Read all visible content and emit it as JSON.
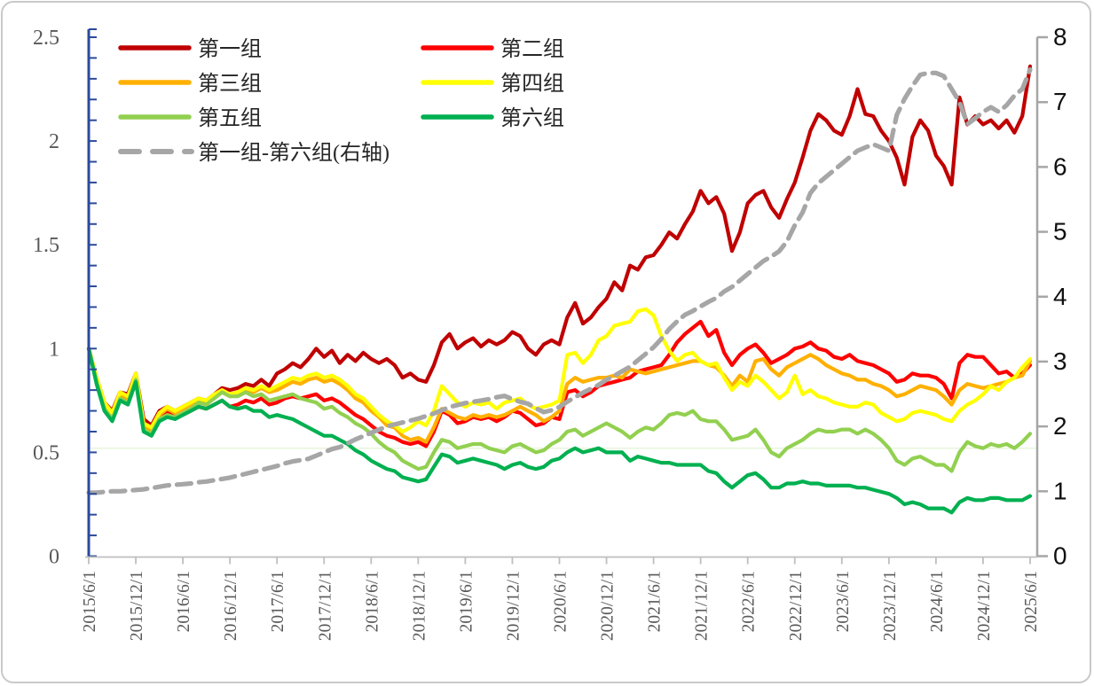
{
  "legend": {
    "items": [
      {
        "label": "第一组",
        "color": "#C00000",
        "dashed": false
      },
      {
        "label": "第二组",
        "color": "#FF0000",
        "dashed": false
      },
      {
        "label": "第三组",
        "color": "#FFB000",
        "dashed": false
      },
      {
        "label": "第四组",
        "color": "#FFFF00",
        "dashed": false
      },
      {
        "label": "第五组",
        "color": "#92D050",
        "dashed": false
      },
      {
        "label": "第六组",
        "color": "#00B050",
        "dashed": false
      },
      {
        "label": "第一组-第六组(右轴)",
        "color": "#A6A6A6",
        "dashed": true
      }
    ]
  },
  "chart_data": {
    "type": "line",
    "title": "",
    "x_frequency": "monthly",
    "x_start": "2015/6/1",
    "x_end": "2025/6/1",
    "x_tick_labels": [
      "2015/6/1",
      "2015/12/1",
      "2016/6/1",
      "2016/12/1",
      "2017/6/1",
      "2017/12/1",
      "2018/6/1",
      "2018/12/1",
      "2019/6/1",
      "2019/12/1",
      "2020/6/1",
      "2020/12/1",
      "2021/6/1",
      "2021/12/1",
      "2022/6/1",
      "2022/12/1",
      "2023/6/1",
      "2023/12/1",
      "2024/6/1",
      "2024/12/1",
      "2025/6/1"
    ],
    "left_axis": {
      "min": 0,
      "max": 2.5,
      "minor_step": 0.1,
      "tick_values": [
        0,
        0.5,
        1,
        1.5,
        2,
        2.5
      ],
      "tick_labels": [
        "0",
        "0.5",
        "1",
        "1.5",
        "2",
        "2.5"
      ],
      "line_color": "#2b4a9b",
      "label_color": "#595959"
    },
    "right_axis": {
      "min": 0,
      "max": 8,
      "tick_values": [
        0,
        1,
        2,
        3,
        4,
        5,
        6,
        7,
        8
      ],
      "tick_labels": [
        "0",
        "1",
        "2",
        "3",
        "4",
        "5",
        "6",
        "7",
        "8"
      ],
      "line_color": "#a6a6a6",
      "label_color": "#111111"
    },
    "x_axis": {
      "line_color": "#bfbfbf",
      "label_color": "#595959"
    },
    "faint_hline_left_value": 0.52,
    "grid": "off",
    "legend_position": "top-left, two columns",
    "series": [
      {
        "name": "第一组",
        "color": "#C00000",
        "axis": "left",
        "dashed": false,
        "values": [
          1.0,
          0.86,
          0.74,
          0.7,
          0.79,
          0.78,
          0.88,
          0.66,
          0.63,
          0.7,
          0.72,
          0.7,
          0.72,
          0.74,
          0.76,
          0.75,
          0.78,
          0.81,
          0.8,
          0.81,
          0.83,
          0.82,
          0.85,
          0.82,
          0.88,
          0.9,
          0.93,
          0.91,
          0.95,
          1.0,
          0.96,
          0.99,
          0.93,
          0.97,
          0.94,
          0.98,
          0.95,
          0.93,
          0.95,
          0.92,
          0.86,
          0.88,
          0.85,
          0.84,
          0.92,
          1.03,
          1.07,
          1.0,
          1.03,
          1.05,
          1.01,
          1.04,
          1.02,
          1.04,
          1.08,
          1.06,
          1.0,
          0.97,
          1.02,
          1.04,
          1.02,
          1.15,
          1.22,
          1.12,
          1.15,
          1.2,
          1.24,
          1.32,
          1.28,
          1.4,
          1.38,
          1.44,
          1.45,
          1.5,
          1.56,
          1.53,
          1.6,
          1.66,
          1.76,
          1.7,
          1.73,
          1.65,
          1.47,
          1.56,
          1.7,
          1.74,
          1.76,
          1.68,
          1.63,
          1.72,
          1.8,
          1.92,
          2.05,
          2.13,
          2.1,
          2.05,
          2.03,
          2.12,
          2.25,
          2.13,
          2.12,
          2.05,
          2.0,
          1.92,
          1.79,
          2.02,
          2.1,
          2.05,
          1.93,
          1.88,
          1.79,
          2.21,
          2.08,
          2.12,
          2.08,
          2.1,
          2.06,
          2.1,
          2.04,
          2.12,
          2.36
        ]
      },
      {
        "name": "第二组",
        "color": "#FF0000",
        "axis": "left",
        "dashed": false,
        "values": [
          1.0,
          0.85,
          0.72,
          0.67,
          0.77,
          0.75,
          0.86,
          0.62,
          0.6,
          0.67,
          0.69,
          0.67,
          0.68,
          0.7,
          0.72,
          0.71,
          0.73,
          0.75,
          0.72,
          0.73,
          0.75,
          0.74,
          0.76,
          0.73,
          0.74,
          0.76,
          0.77,
          0.76,
          0.77,
          0.78,
          0.75,
          0.76,
          0.74,
          0.71,
          0.68,
          0.66,
          0.63,
          0.6,
          0.58,
          0.57,
          0.55,
          0.54,
          0.55,
          0.53,
          0.6,
          0.7,
          0.68,
          0.64,
          0.65,
          0.67,
          0.66,
          0.67,
          0.65,
          0.67,
          0.7,
          0.69,
          0.66,
          0.63,
          0.64,
          0.67,
          0.66,
          0.79,
          0.8,
          0.77,
          0.79,
          0.82,
          0.83,
          0.84,
          0.85,
          0.86,
          0.89,
          0.9,
          0.91,
          0.92,
          0.97,
          1.03,
          1.07,
          1.1,
          1.13,
          1.06,
          1.09,
          0.98,
          0.92,
          0.97,
          1.0,
          1.02,
          0.98,
          0.93,
          0.95,
          0.97,
          1.0,
          1.01,
          1.03,
          1.0,
          0.99,
          0.96,
          0.95,
          0.97,
          0.94,
          0.93,
          0.92,
          0.9,
          0.88,
          0.84,
          0.85,
          0.88,
          0.87,
          0.87,
          0.86,
          0.83,
          0.76,
          0.93,
          0.97,
          0.96,
          0.96,
          0.92,
          0.88,
          0.89,
          0.86,
          0.88,
          0.92
        ]
      },
      {
        "name": "第三组",
        "color": "#FFB000",
        "axis": "left",
        "dashed": false,
        "values": [
          1.0,
          0.86,
          0.73,
          0.68,
          0.78,
          0.76,
          0.87,
          0.63,
          0.61,
          0.68,
          0.71,
          0.69,
          0.71,
          0.73,
          0.75,
          0.74,
          0.77,
          0.79,
          0.77,
          0.78,
          0.8,
          0.79,
          0.81,
          0.79,
          0.8,
          0.82,
          0.84,
          0.83,
          0.85,
          0.86,
          0.84,
          0.85,
          0.83,
          0.8,
          0.76,
          0.74,
          0.7,
          0.67,
          0.63,
          0.62,
          0.58,
          0.56,
          0.57,
          0.55,
          0.62,
          0.71,
          0.69,
          0.67,
          0.66,
          0.68,
          0.67,
          0.68,
          0.67,
          0.68,
          0.7,
          0.72,
          0.7,
          0.68,
          0.65,
          0.67,
          0.7,
          0.83,
          0.86,
          0.84,
          0.85,
          0.86,
          0.86,
          0.87,
          0.86,
          0.9,
          0.89,
          0.88,
          0.89,
          0.9,
          0.91,
          0.92,
          0.93,
          0.94,
          0.94,
          0.92,
          0.91,
          0.87,
          0.82,
          0.87,
          0.84,
          0.94,
          0.95,
          0.9,
          0.87,
          0.91,
          0.93,
          0.95,
          0.97,
          0.95,
          0.92,
          0.9,
          0.88,
          0.87,
          0.85,
          0.85,
          0.83,
          0.82,
          0.8,
          0.77,
          0.78,
          0.8,
          0.82,
          0.81,
          0.8,
          0.77,
          0.73,
          0.8,
          0.83,
          0.82,
          0.81,
          0.82,
          0.83,
          0.84,
          0.86,
          0.87,
          0.94
        ]
      },
      {
        "name": "第四组",
        "color": "#FFFF00",
        "axis": "left",
        "dashed": false,
        "values": [
          1.0,
          0.86,
          0.74,
          0.69,
          0.79,
          0.77,
          0.88,
          0.64,
          0.62,
          0.69,
          0.72,
          0.7,
          0.72,
          0.74,
          0.76,
          0.75,
          0.78,
          0.8,
          0.78,
          0.79,
          0.81,
          0.8,
          0.82,
          0.8,
          0.82,
          0.84,
          0.86,
          0.85,
          0.87,
          0.88,
          0.86,
          0.87,
          0.85,
          0.82,
          0.78,
          0.76,
          0.72,
          0.68,
          0.65,
          0.63,
          0.6,
          0.62,
          0.65,
          0.63,
          0.7,
          0.82,
          0.78,
          0.74,
          0.72,
          0.74,
          0.73,
          0.74,
          0.71,
          0.74,
          0.75,
          0.76,
          0.73,
          0.71,
          0.72,
          0.73,
          0.75,
          0.97,
          0.98,
          0.93,
          0.97,
          1.04,
          1.06,
          1.11,
          1.12,
          1.13,
          1.18,
          1.19,
          1.16,
          1.06,
          0.99,
          0.94,
          0.97,
          0.98,
          0.94,
          0.92,
          0.93,
          0.86,
          0.8,
          0.84,
          0.82,
          0.87,
          0.84,
          0.8,
          0.76,
          0.79,
          0.87,
          0.78,
          0.8,
          0.77,
          0.76,
          0.74,
          0.73,
          0.72,
          0.72,
          0.74,
          0.73,
          0.69,
          0.67,
          0.65,
          0.66,
          0.69,
          0.7,
          0.69,
          0.68,
          0.66,
          0.65,
          0.7,
          0.73,
          0.75,
          0.78,
          0.82,
          0.8,
          0.84,
          0.86,
          0.91,
          0.95
        ]
      },
      {
        "name": "第五组",
        "color": "#92D050",
        "axis": "left",
        "dashed": false,
        "values": [
          1.0,
          0.84,
          0.71,
          0.66,
          0.76,
          0.74,
          0.85,
          0.61,
          0.59,
          0.66,
          0.68,
          0.67,
          0.69,
          0.71,
          0.74,
          0.73,
          0.76,
          0.79,
          0.77,
          0.77,
          0.79,
          0.77,
          0.78,
          0.75,
          0.76,
          0.77,
          0.78,
          0.76,
          0.75,
          0.74,
          0.71,
          0.72,
          0.69,
          0.67,
          0.64,
          0.62,
          0.59,
          0.55,
          0.52,
          0.5,
          0.46,
          0.44,
          0.42,
          0.43,
          0.5,
          0.56,
          0.55,
          0.52,
          0.53,
          0.54,
          0.54,
          0.52,
          0.51,
          0.5,
          0.53,
          0.54,
          0.52,
          0.5,
          0.51,
          0.54,
          0.56,
          0.6,
          0.61,
          0.58,
          0.6,
          0.62,
          0.64,
          0.62,
          0.6,
          0.57,
          0.6,
          0.62,
          0.61,
          0.64,
          0.68,
          0.69,
          0.68,
          0.7,
          0.66,
          0.65,
          0.65,
          0.61,
          0.56,
          0.57,
          0.58,
          0.61,
          0.56,
          0.5,
          0.48,
          0.52,
          0.54,
          0.56,
          0.59,
          0.61,
          0.6,
          0.6,
          0.61,
          0.61,
          0.59,
          0.61,
          0.59,
          0.56,
          0.52,
          0.46,
          0.44,
          0.47,
          0.48,
          0.46,
          0.44,
          0.44,
          0.41,
          0.5,
          0.55,
          0.53,
          0.52,
          0.54,
          0.53,
          0.54,
          0.52,
          0.55,
          0.59
        ]
      },
      {
        "name": "第六组",
        "color": "#00B050",
        "axis": "left",
        "dashed": false,
        "values": [
          1.0,
          0.83,
          0.7,
          0.65,
          0.75,
          0.73,
          0.84,
          0.6,
          0.58,
          0.65,
          0.67,
          0.66,
          0.68,
          0.7,
          0.72,
          0.71,
          0.73,
          0.75,
          0.72,
          0.71,
          0.72,
          0.7,
          0.7,
          0.67,
          0.68,
          0.67,
          0.66,
          0.64,
          0.62,
          0.6,
          0.58,
          0.58,
          0.56,
          0.54,
          0.51,
          0.49,
          0.46,
          0.44,
          0.42,
          0.41,
          0.38,
          0.37,
          0.36,
          0.37,
          0.43,
          0.49,
          0.48,
          0.45,
          0.46,
          0.47,
          0.46,
          0.45,
          0.44,
          0.42,
          0.44,
          0.45,
          0.43,
          0.42,
          0.43,
          0.46,
          0.47,
          0.5,
          0.52,
          0.5,
          0.51,
          0.52,
          0.5,
          0.5,
          0.5,
          0.46,
          0.48,
          0.47,
          0.46,
          0.45,
          0.45,
          0.44,
          0.44,
          0.44,
          0.44,
          0.41,
          0.4,
          0.36,
          0.33,
          0.36,
          0.39,
          0.4,
          0.37,
          0.33,
          0.33,
          0.35,
          0.35,
          0.36,
          0.35,
          0.35,
          0.34,
          0.34,
          0.34,
          0.34,
          0.33,
          0.33,
          0.32,
          0.31,
          0.3,
          0.28,
          0.25,
          0.26,
          0.25,
          0.23,
          0.23,
          0.23,
          0.21,
          0.26,
          0.28,
          0.27,
          0.27,
          0.28,
          0.28,
          0.27,
          0.27,
          0.27,
          0.29
        ]
      },
      {
        "name": "第一组-第六组(右轴)",
        "color": "#A6A6A6",
        "axis": "right",
        "dashed": true,
        "values": [
          0.98,
          0.98,
          0.99,
          1.0,
          1.0,
          1.01,
          1.02,
          1.03,
          1.05,
          1.07,
          1.09,
          1.1,
          1.11,
          1.12,
          1.14,
          1.15,
          1.17,
          1.19,
          1.21,
          1.24,
          1.27,
          1.3,
          1.33,
          1.36,
          1.39,
          1.43,
          1.46,
          1.48,
          1.5,
          1.55,
          1.6,
          1.65,
          1.68,
          1.74,
          1.8,
          1.85,
          1.9,
          1.95,
          2.0,
          2.03,
          2.06,
          2.09,
          2.12,
          2.16,
          2.2,
          2.25,
          2.3,
          2.33,
          2.36,
          2.38,
          2.4,
          2.42,
          2.45,
          2.47,
          2.42,
          2.38,
          2.35,
          2.28,
          2.22,
          2.25,
          2.3,
          2.38,
          2.45,
          2.52,
          2.58,
          2.64,
          2.72,
          2.78,
          2.85,
          2.92,
          3.02,
          3.12,
          3.22,
          3.35,
          3.5,
          3.62,
          3.72,
          3.78,
          3.85,
          3.92,
          3.98,
          4.08,
          4.15,
          4.25,
          4.35,
          4.45,
          4.55,
          4.62,
          4.7,
          4.85,
          5.1,
          5.3,
          5.6,
          5.75,
          5.85,
          5.95,
          6.05,
          6.15,
          6.25,
          6.3,
          6.35,
          6.3,
          6.25,
          6.8,
          7.05,
          7.25,
          7.42,
          7.45,
          7.45,
          7.4,
          7.2,
          7.0,
          6.66,
          6.75,
          6.85,
          6.92,
          6.85,
          6.95,
          7.1,
          7.2,
          7.5
        ]
      }
    ]
  }
}
